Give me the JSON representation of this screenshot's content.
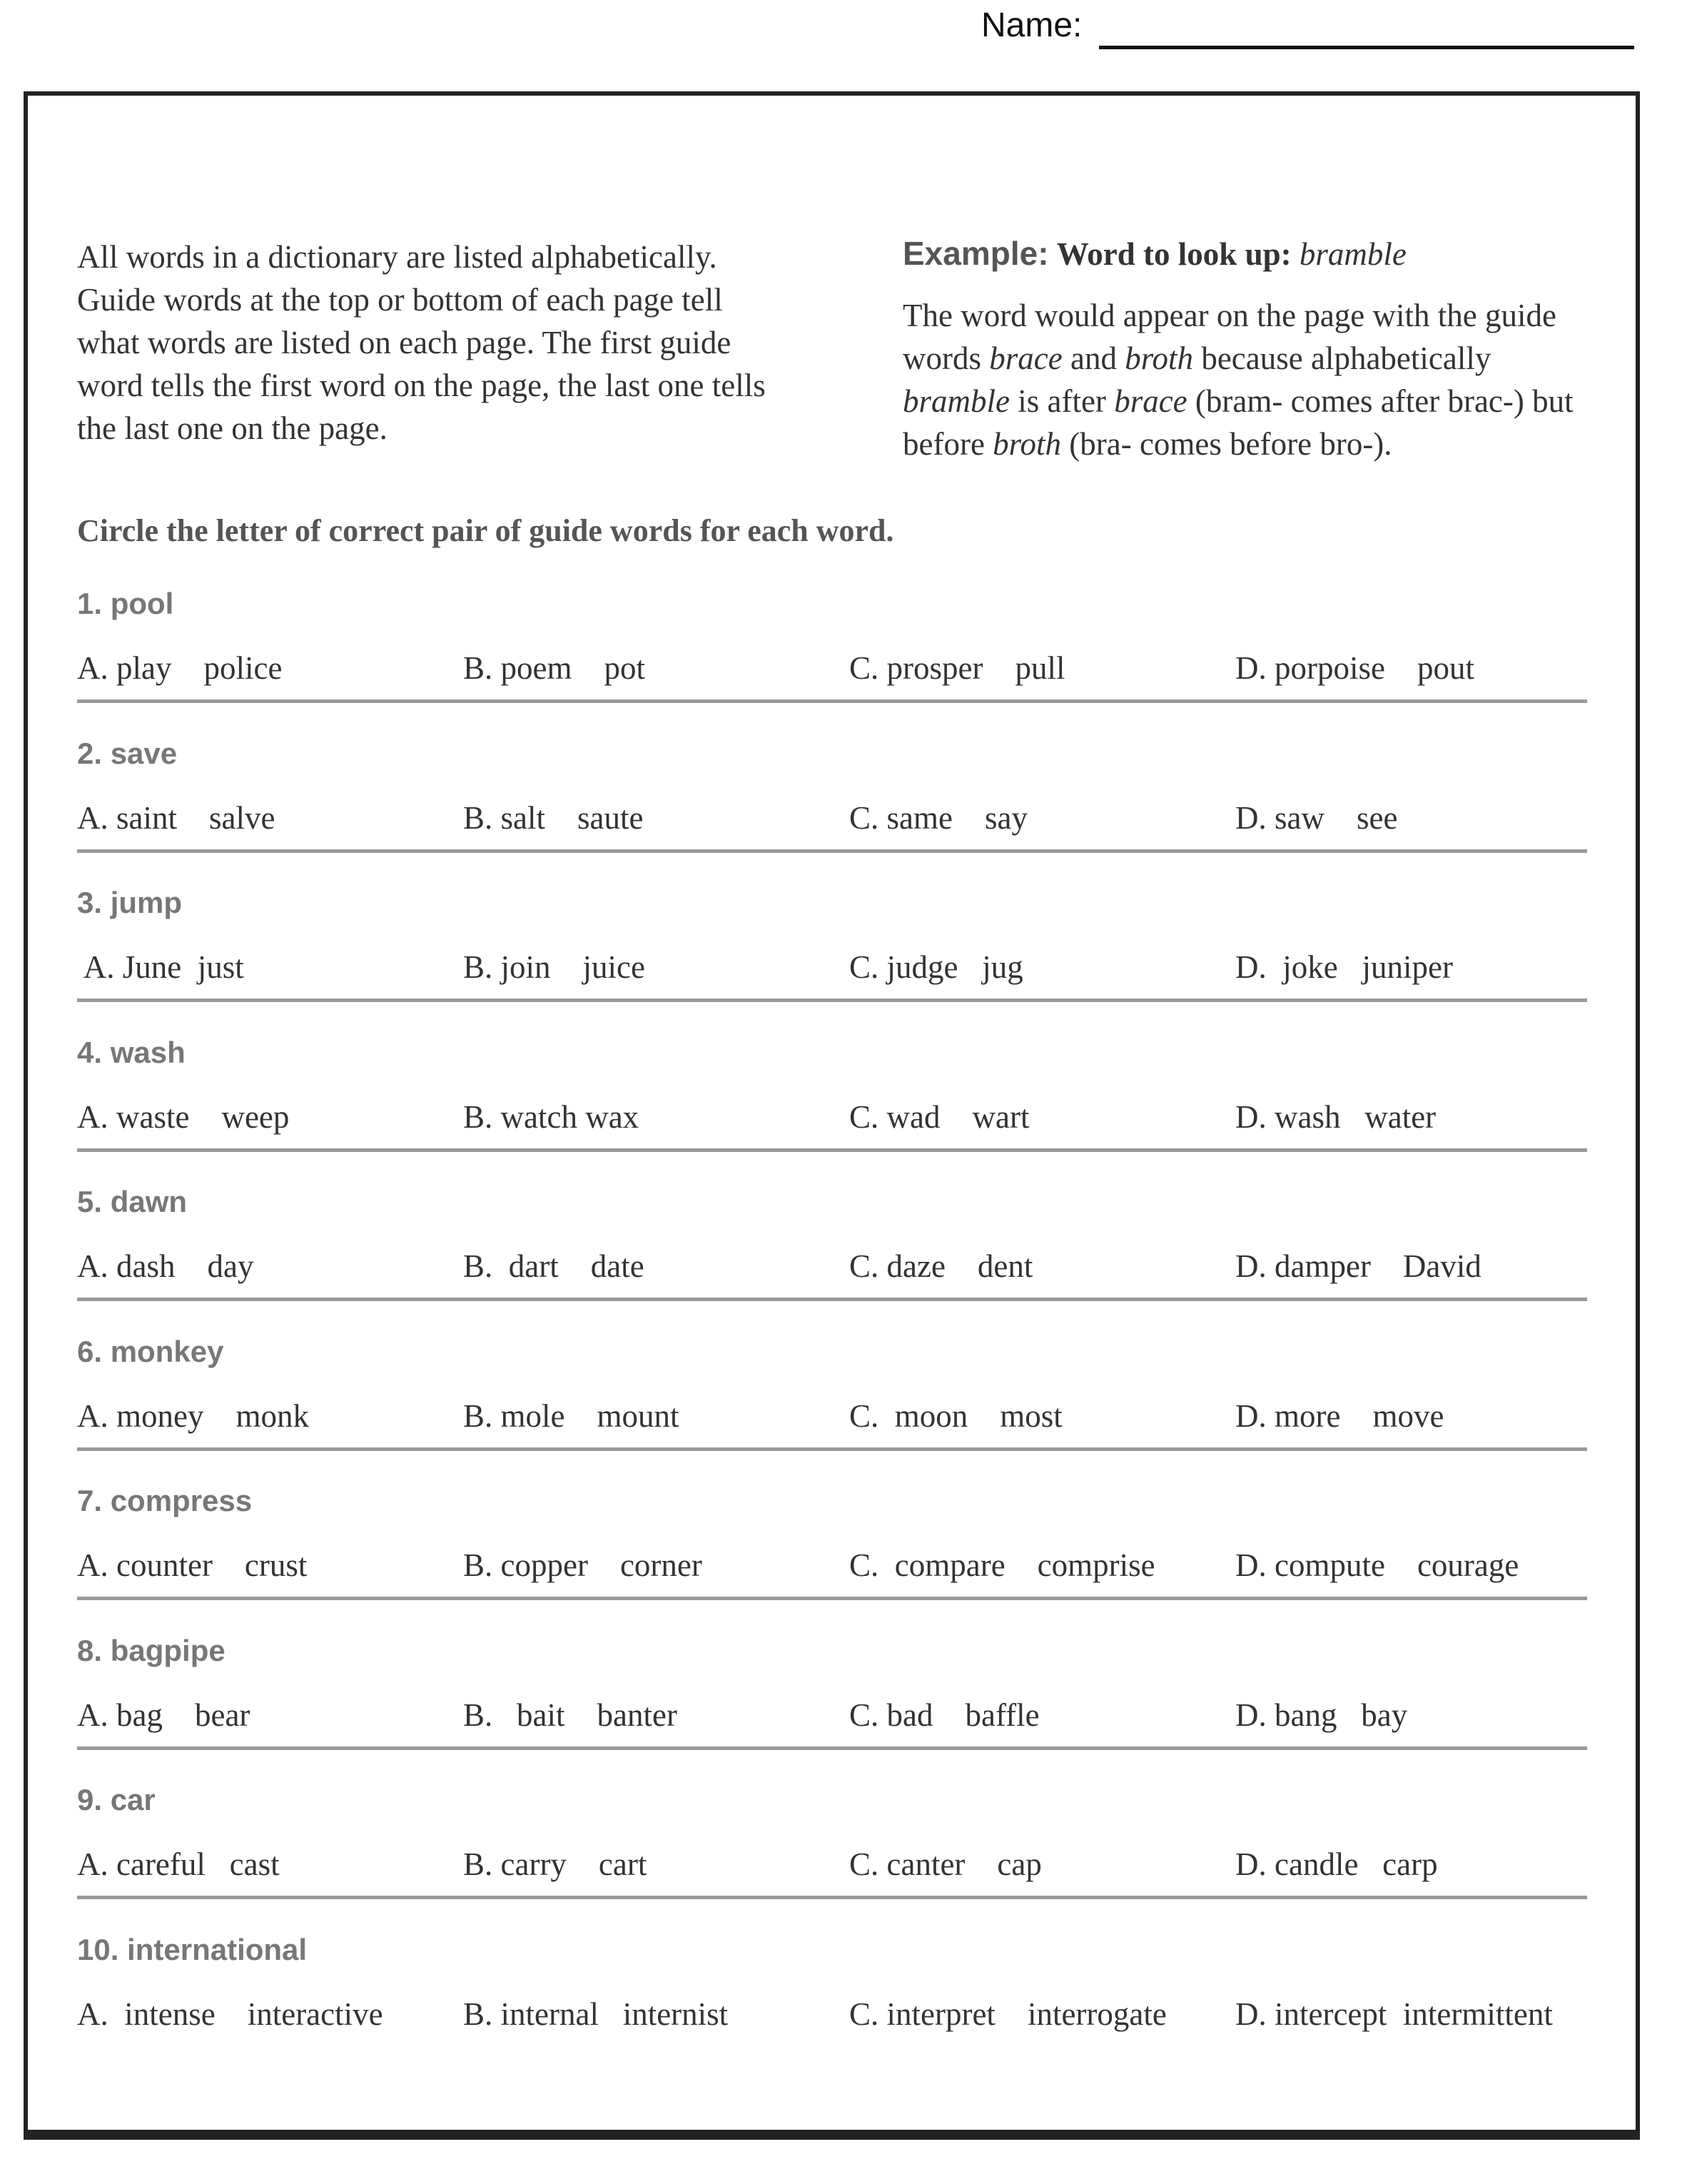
{
  "header": {
    "name_label": "Name:"
  },
  "intro": {
    "lines": [
      "All words in a dictionary are listed alphabetically.",
      "Guide words at the top or bottom of each page tell",
      "what words are listed on each page. The first guide",
      "word tells the first word on the page, the last one tells",
      "the last one on the page."
    ]
  },
  "example": {
    "heading": "Example:",
    "sub": "Word to look up:",
    "word": "bramble",
    "body": {
      "p1": "The word would appear on the page with the guide words ",
      "w1": "brace",
      "p2": " and ",
      "w2": "broth",
      "p3": " because alphabetically ",
      "w3": "bramble",
      "p4": " is after ",
      "w4": "brace",
      "p5": " (bram- comes after brac-) but before ",
      "w5": "broth",
      "p6": " (bra- comes before bro-)."
    }
  },
  "instruction": "Circle the letter of correct pair of guide words for each word.",
  "questions": [
    {
      "heading": "1. pool",
      "options": [
        "A. play    police",
        "B. poem    pot",
        "C. prosper    pull",
        "D. porpoise    pout"
      ]
    },
    {
      "heading": "2. save",
      "options": [
        "A. saint    salve",
        "B. salt    saute",
        "C. same    say",
        "D. saw    see"
      ]
    },
    {
      "heading": "3. jump",
      "options": [
        " A. June  just",
        "B. join    juice",
        "C. judge   jug",
        "D.  joke   juniper"
      ]
    },
    {
      "heading": "4. wash",
      "options": [
        "A. waste    weep",
        "B. watch wax",
        "C. wad    wart",
        "D. wash   water"
      ]
    },
    {
      "heading": "5. dawn",
      "options": [
        "A. dash    day",
        "B.  dart    date",
        "C. daze    dent",
        "D. damper    David"
      ]
    },
    {
      "heading": "6. monkey",
      "options": [
        "A. money    monk",
        "B. mole    mount",
        "C.  moon    most",
        "D. more    move"
      ]
    },
    {
      "heading": "7. compress",
      "options": [
        "A. counter    crust",
        "B. copper    corner",
        "C.  compare    comprise",
        "D. compute    courage"
      ]
    },
    {
      "heading": "8. bagpipe",
      "options": [
        "A. bag    bear",
        "B.   bait    banter",
        "C. bad    baffle",
        "D. bang   bay"
      ]
    },
    {
      "heading": "9. car",
      "options": [
        "A. careful   cast",
        "B. carry    cart",
        "C. canter    cap",
        "D. candle   carp"
      ]
    },
    {
      "heading": "10. international",
      "options": [
        "A.  intense    interactive",
        "B. internal   internist",
        "C. interpret    interrogate",
        "D. intercept  intermittent"
      ]
    }
  ]
}
